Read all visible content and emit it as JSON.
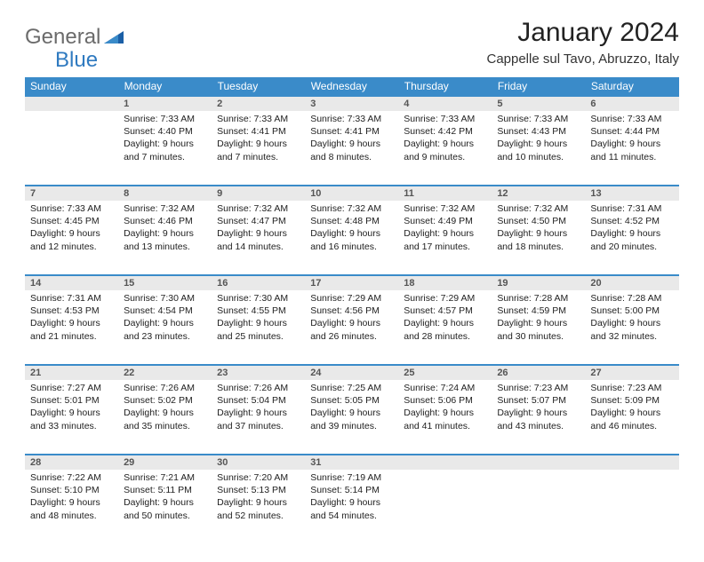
{
  "logo": {
    "text1": "General",
    "text2": "Blue"
  },
  "title": "January 2024",
  "location": "Cappelle sul Tavo, Abruzzo, Italy",
  "colors": {
    "header_bg": "#3a8bc9",
    "header_text": "#ffffff",
    "daynum_bg": "#e9e9e9",
    "row_divider": "#3a8bc9",
    "logo_gray": "#6b6b6b",
    "logo_blue": "#2f7ac0",
    "text": "#222222",
    "background": "#ffffff"
  },
  "typography": {
    "title_fontsize": 30,
    "location_fontsize": 15,
    "header_fontsize": 12,
    "cell_fontsize": 10.5,
    "daynum_fontsize": 11
  },
  "day_headers": [
    "Sunday",
    "Monday",
    "Tuesday",
    "Wednesday",
    "Thursday",
    "Friday",
    "Saturday"
  ],
  "weeks": [
    {
      "nums": [
        "",
        "1",
        "2",
        "3",
        "4",
        "5",
        "6"
      ],
      "cells": [
        {
          "sunrise": "",
          "sunset": "",
          "daylight": ""
        },
        {
          "sunrise": "Sunrise: 7:33 AM",
          "sunset": "Sunset: 4:40 PM",
          "daylight": "Daylight: 9 hours and 7 minutes."
        },
        {
          "sunrise": "Sunrise: 7:33 AM",
          "sunset": "Sunset: 4:41 PM",
          "daylight": "Daylight: 9 hours and 7 minutes."
        },
        {
          "sunrise": "Sunrise: 7:33 AM",
          "sunset": "Sunset: 4:41 PM",
          "daylight": "Daylight: 9 hours and 8 minutes."
        },
        {
          "sunrise": "Sunrise: 7:33 AM",
          "sunset": "Sunset: 4:42 PM",
          "daylight": "Daylight: 9 hours and 9 minutes."
        },
        {
          "sunrise": "Sunrise: 7:33 AM",
          "sunset": "Sunset: 4:43 PM",
          "daylight": "Daylight: 9 hours and 10 minutes."
        },
        {
          "sunrise": "Sunrise: 7:33 AM",
          "sunset": "Sunset: 4:44 PM",
          "daylight": "Daylight: 9 hours and 11 minutes."
        }
      ]
    },
    {
      "nums": [
        "7",
        "8",
        "9",
        "10",
        "11",
        "12",
        "13"
      ],
      "cells": [
        {
          "sunrise": "Sunrise: 7:33 AM",
          "sunset": "Sunset: 4:45 PM",
          "daylight": "Daylight: 9 hours and 12 minutes."
        },
        {
          "sunrise": "Sunrise: 7:32 AM",
          "sunset": "Sunset: 4:46 PM",
          "daylight": "Daylight: 9 hours and 13 minutes."
        },
        {
          "sunrise": "Sunrise: 7:32 AM",
          "sunset": "Sunset: 4:47 PM",
          "daylight": "Daylight: 9 hours and 14 minutes."
        },
        {
          "sunrise": "Sunrise: 7:32 AM",
          "sunset": "Sunset: 4:48 PM",
          "daylight": "Daylight: 9 hours and 16 minutes."
        },
        {
          "sunrise": "Sunrise: 7:32 AM",
          "sunset": "Sunset: 4:49 PM",
          "daylight": "Daylight: 9 hours and 17 minutes."
        },
        {
          "sunrise": "Sunrise: 7:32 AM",
          "sunset": "Sunset: 4:50 PM",
          "daylight": "Daylight: 9 hours and 18 minutes."
        },
        {
          "sunrise": "Sunrise: 7:31 AM",
          "sunset": "Sunset: 4:52 PM",
          "daylight": "Daylight: 9 hours and 20 minutes."
        }
      ]
    },
    {
      "nums": [
        "14",
        "15",
        "16",
        "17",
        "18",
        "19",
        "20"
      ],
      "cells": [
        {
          "sunrise": "Sunrise: 7:31 AM",
          "sunset": "Sunset: 4:53 PM",
          "daylight": "Daylight: 9 hours and 21 minutes."
        },
        {
          "sunrise": "Sunrise: 7:30 AM",
          "sunset": "Sunset: 4:54 PM",
          "daylight": "Daylight: 9 hours and 23 minutes."
        },
        {
          "sunrise": "Sunrise: 7:30 AM",
          "sunset": "Sunset: 4:55 PM",
          "daylight": "Daylight: 9 hours and 25 minutes."
        },
        {
          "sunrise": "Sunrise: 7:29 AM",
          "sunset": "Sunset: 4:56 PM",
          "daylight": "Daylight: 9 hours and 26 minutes."
        },
        {
          "sunrise": "Sunrise: 7:29 AM",
          "sunset": "Sunset: 4:57 PM",
          "daylight": "Daylight: 9 hours and 28 minutes."
        },
        {
          "sunrise": "Sunrise: 7:28 AM",
          "sunset": "Sunset: 4:59 PM",
          "daylight": "Daylight: 9 hours and 30 minutes."
        },
        {
          "sunrise": "Sunrise: 7:28 AM",
          "sunset": "Sunset: 5:00 PM",
          "daylight": "Daylight: 9 hours and 32 minutes."
        }
      ]
    },
    {
      "nums": [
        "21",
        "22",
        "23",
        "24",
        "25",
        "26",
        "27"
      ],
      "cells": [
        {
          "sunrise": "Sunrise: 7:27 AM",
          "sunset": "Sunset: 5:01 PM",
          "daylight": "Daylight: 9 hours and 33 minutes."
        },
        {
          "sunrise": "Sunrise: 7:26 AM",
          "sunset": "Sunset: 5:02 PM",
          "daylight": "Daylight: 9 hours and 35 minutes."
        },
        {
          "sunrise": "Sunrise: 7:26 AM",
          "sunset": "Sunset: 5:04 PM",
          "daylight": "Daylight: 9 hours and 37 minutes."
        },
        {
          "sunrise": "Sunrise: 7:25 AM",
          "sunset": "Sunset: 5:05 PM",
          "daylight": "Daylight: 9 hours and 39 minutes."
        },
        {
          "sunrise": "Sunrise: 7:24 AM",
          "sunset": "Sunset: 5:06 PM",
          "daylight": "Daylight: 9 hours and 41 minutes."
        },
        {
          "sunrise": "Sunrise: 7:23 AM",
          "sunset": "Sunset: 5:07 PM",
          "daylight": "Daylight: 9 hours and 43 minutes."
        },
        {
          "sunrise": "Sunrise: 7:23 AM",
          "sunset": "Sunset: 5:09 PM",
          "daylight": "Daylight: 9 hours and 46 minutes."
        }
      ]
    },
    {
      "nums": [
        "28",
        "29",
        "30",
        "31",
        "",
        "",
        ""
      ],
      "cells": [
        {
          "sunrise": "Sunrise: 7:22 AM",
          "sunset": "Sunset: 5:10 PM",
          "daylight": "Daylight: 9 hours and 48 minutes."
        },
        {
          "sunrise": "Sunrise: 7:21 AM",
          "sunset": "Sunset: 5:11 PM",
          "daylight": "Daylight: 9 hours and 50 minutes."
        },
        {
          "sunrise": "Sunrise: 7:20 AM",
          "sunset": "Sunset: 5:13 PM",
          "daylight": "Daylight: 9 hours and 52 minutes."
        },
        {
          "sunrise": "Sunrise: 7:19 AM",
          "sunset": "Sunset: 5:14 PM",
          "daylight": "Daylight: 9 hours and 54 minutes."
        },
        {
          "sunrise": "",
          "sunset": "",
          "daylight": ""
        },
        {
          "sunrise": "",
          "sunset": "",
          "daylight": ""
        },
        {
          "sunrise": "",
          "sunset": "",
          "daylight": ""
        }
      ]
    }
  ]
}
